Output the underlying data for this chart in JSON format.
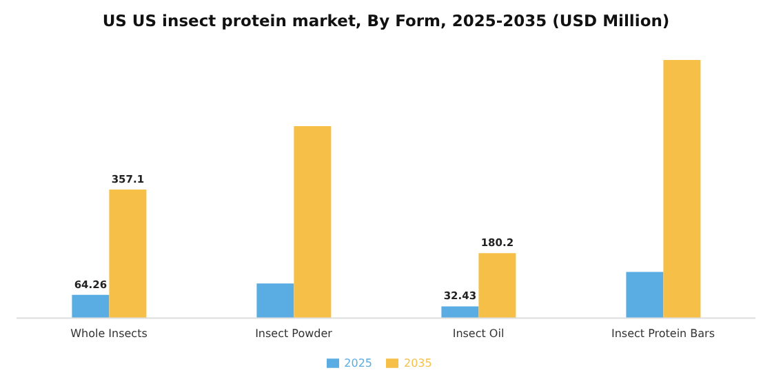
{
  "chart_data": {
    "type": "bar",
    "title": "US US insect protein market, By Form, 2025-2035 (USD Million)",
    "categories": [
      "Whole Insects",
      "Insect Powder",
      "Insect Oil",
      "Insect Protein Bars"
    ],
    "series": [
      {
        "name": "2025",
        "color": "#5aade3",
        "values": [
          64.26,
          96,
          32.43,
          128
        ],
        "value_labels": [
          "64.26",
          null,
          "32.43",
          null
        ]
      },
      {
        "name": "2035",
        "color": "#f6bf47",
        "values": [
          357.1,
          533,
          180.2,
          717
        ],
        "value_labels": [
          "357.1",
          null,
          "180.2",
          null
        ]
      }
    ],
    "legend": "bottom",
    "grid": false
  }
}
